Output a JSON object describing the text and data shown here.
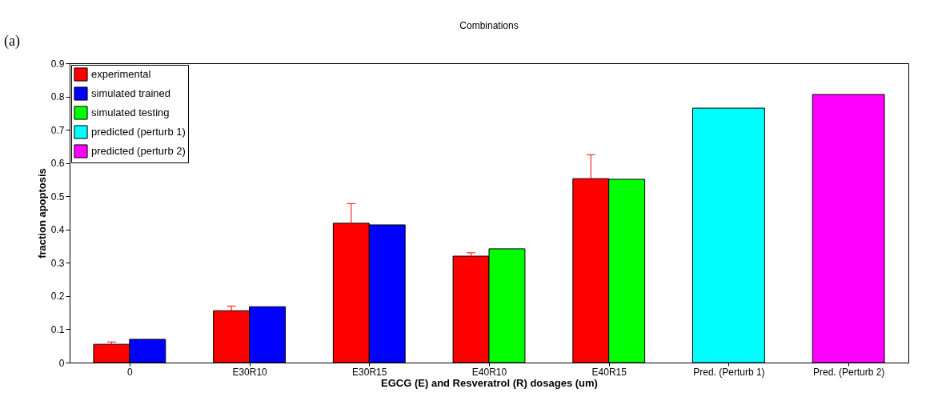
{
  "chart_data": {
    "type": "bar",
    "title": "Combinations",
    "xlabel": "EGCG (E) and Resveratrol (R) dosages (um)",
    "ylabel": "fraction apoptosis",
    "categories": [
      "0",
      "E30R10",
      "E30R15",
      "E40R10",
      "E40R15",
      "Pred. (Perturb 1)",
      "Pred. (Perturb 2)"
    ],
    "series": [
      {
        "name": "experimental",
        "color": "#ff0000",
        "values": [
          0.055,
          0.156,
          0.419,
          0.32,
          0.553,
          null,
          null
        ],
        "errors": [
          [
            0.055,
            0.062
          ],
          [
            0.156,
            0.17
          ],
          [
            0.419,
            0.478
          ],
          [
            0.32,
            0.33
          ],
          [
            0.553,
            0.625
          ],
          null,
          null
        ]
      },
      {
        "name": "simulated trained",
        "color": "#0000ff",
        "values": [
          0.07,
          0.168,
          0.414,
          null,
          null,
          null,
          null
        ]
      },
      {
        "name": "simulated testing",
        "color": "#00ff00",
        "values": [
          null,
          null,
          null,
          0.342,
          0.551,
          null,
          null
        ]
      },
      {
        "name": "predicted (perturb 1)",
        "color": "#00ffff",
        "values": [
          null,
          null,
          null,
          null,
          null,
          0.765,
          null
        ]
      },
      {
        "name": "predicted (perturb 2)",
        "color": "#ff00ff",
        "values": [
          null,
          null,
          null,
          null,
          null,
          null,
          0.806
        ]
      }
    ],
    "ylim": [
      0,
      0.9
    ],
    "yticks": [
      0,
      0.1,
      0.2,
      0.3,
      0.4,
      0.5,
      0.6,
      0.7,
      0.8,
      0.9
    ],
    "grid": false,
    "legend": "top left",
    "annotations": [
      "(a)"
    ]
  }
}
